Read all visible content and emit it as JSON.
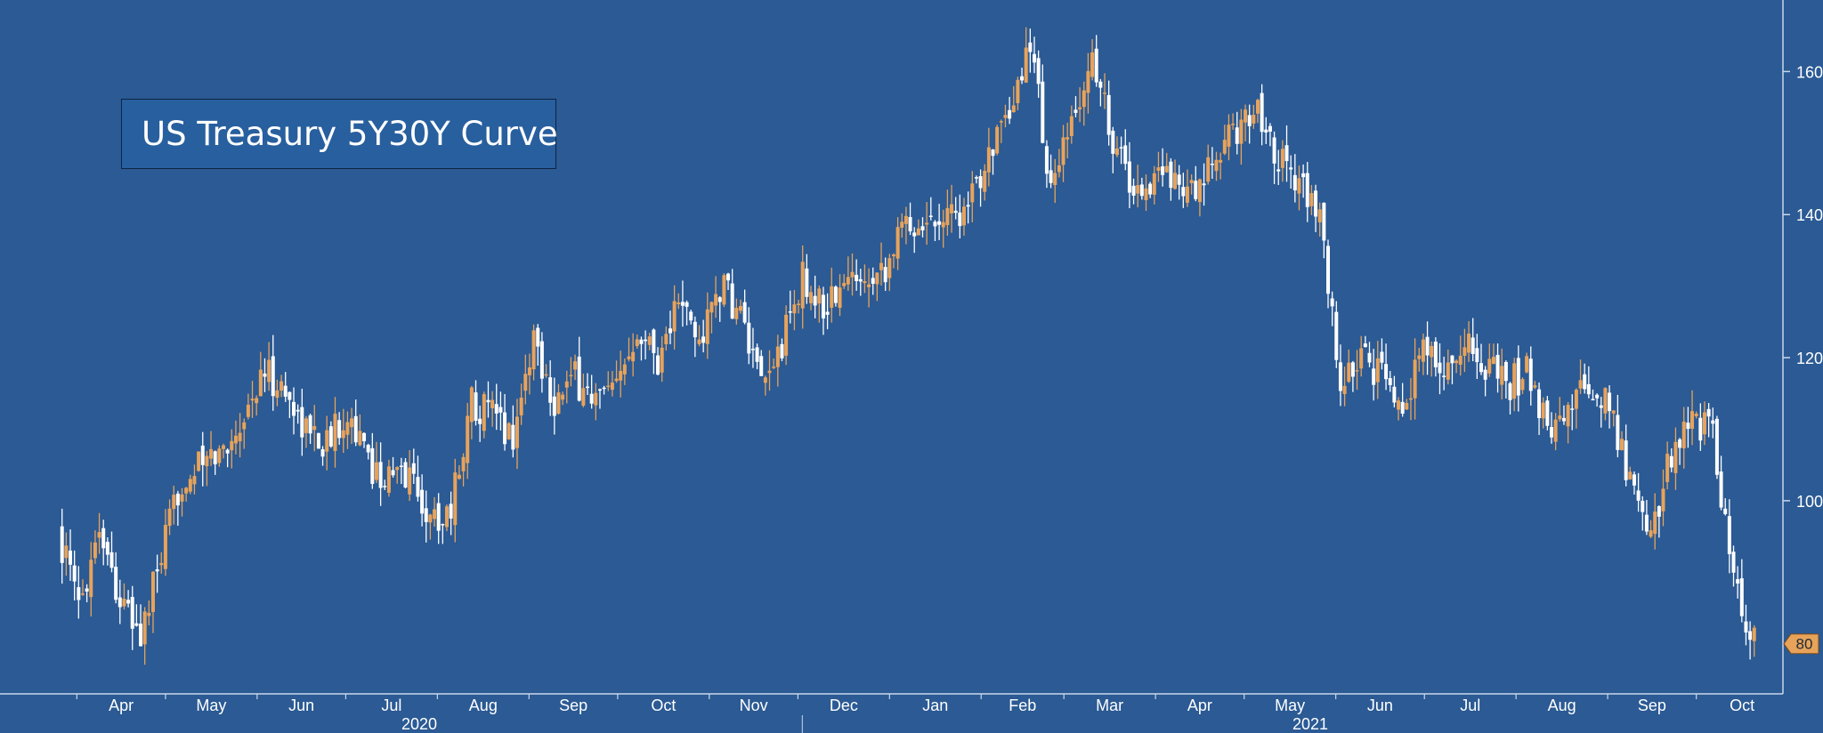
{
  "legend": {
    "label": "US Treasury 5Y30Y Curve"
  },
  "colors": {
    "background": "#2b5a94",
    "up_candle": "#e8a35a",
    "down_candle": "#ffffff",
    "axis": "#c9d7ea",
    "tick_text": "#ffffff",
    "last_value_tag": "#e8a35a"
  },
  "chart_data": {
    "type": "candlestick",
    "title": "",
    "xlabel": "",
    "ylabel": "",
    "y_axis_position": "right",
    "ylim": [
      73,
      170
    ],
    "yticks": [
      100,
      120,
      140,
      160
    ],
    "grid": false,
    "legend_position": "top-left",
    "last_value": 80,
    "x_month_labels": [
      "Apr",
      "May",
      "Jun",
      "Jul",
      "Aug",
      "Sep",
      "Oct",
      "Nov",
      "Dec",
      "Jan",
      "Feb",
      "Mar",
      "Apr",
      "May",
      "Jun",
      "Jul",
      "Aug",
      "Sep",
      "Oct"
    ],
    "x_year_labels": [
      "2020",
      "2021"
    ],
    "series": [
      {
        "x": [
          "2020-03-27",
          "2020-04-03",
          "2020-04-10",
          "2020-04-17",
          "2020-04-24",
          "2020-05-01",
          "2020-05-08",
          "2020-05-15",
          "2020-05-22",
          "2020-05-29",
          "2020-06-05",
          "2020-06-12",
          "2020-06-19",
          "2020-06-26",
          "2020-07-03",
          "2020-07-10",
          "2020-07-17",
          "2020-07-24",
          "2020-07-31",
          "2020-08-07",
          "2020-08-14",
          "2020-08-21",
          "2020-08-28",
          "2020-09-04",
          "2020-09-11",
          "2020-09-18",
          "2020-09-25",
          "2020-10-02",
          "2020-10-09",
          "2020-10-16",
          "2020-10-23",
          "2020-10-30",
          "2020-11-06",
          "2020-11-13",
          "2020-11-20",
          "2020-11-27",
          "2020-12-04",
          "2020-12-11",
          "2020-12-18",
          "2020-12-25",
          "2021-01-01",
          "2021-01-08",
          "2021-01-15",
          "2021-01-22",
          "2021-01-29",
          "2021-02-05",
          "2021-02-12",
          "2021-02-19",
          "2021-02-26",
          "2021-03-05",
          "2021-03-12",
          "2021-03-19",
          "2021-03-26",
          "2021-04-02",
          "2021-04-09",
          "2021-04-16",
          "2021-04-23",
          "2021-04-30",
          "2021-05-07",
          "2021-05-14",
          "2021-05-21",
          "2021-05-28",
          "2021-06-04",
          "2021-06-11",
          "2021-06-18",
          "2021-06-25",
          "2021-07-02",
          "2021-07-09",
          "2021-07-16",
          "2021-07-23",
          "2021-07-30",
          "2021-08-06",
          "2021-08-13",
          "2021-08-20",
          "2021-08-27",
          "2021-09-03",
          "2021-09-10",
          "2021-09-17",
          "2021-09-24",
          "2021-10-01",
          "2021-10-08",
          "2021-10-15",
          "2021-10-22"
        ],
        "close": [
          96,
          85,
          97,
          86,
          81,
          92,
          103,
          105,
          107,
          112,
          118,
          115,
          110,
          108,
          113,
          105,
          103,
          104,
          97,
          99,
          114,
          112,
          109,
          123,
          114,
          117,
          114,
          115,
          125,
          120,
          128,
          122,
          130,
          126,
          115,
          122,
          131,
          127,
          130,
          132,
          133,
          139,
          139,
          141,
          140,
          150,
          152,
          165,
          143,
          152,
          162,
          151,
          143,
          145,
          146,
          142,
          148,
          152,
          155,
          148,
          145,
          139,
          116,
          120,
          117,
          114,
          121,
          118,
          122,
          119,
          116,
          118,
          110,
          113,
          116,
          113,
          103,
          95,
          107,
          112,
          109,
          88,
          80
        ]
      }
    ]
  }
}
